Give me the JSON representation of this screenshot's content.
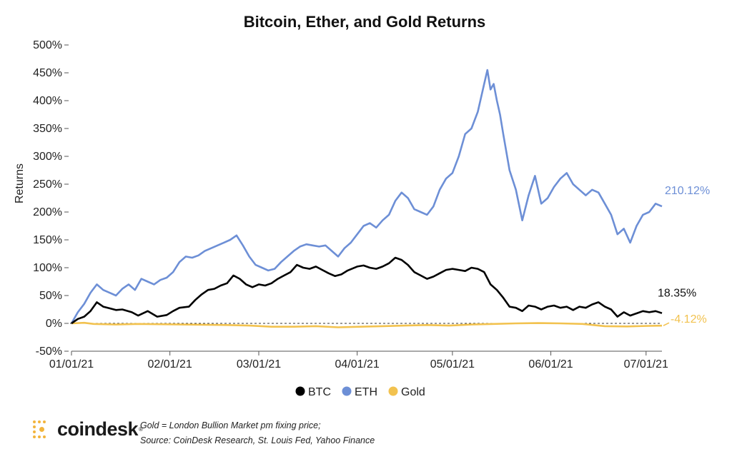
{
  "chart_data": {
    "type": "line",
    "title": "Bitcoin, Ether, and Gold Returns",
    "ylabel": "Returns",
    "xlabel": "",
    "ylim": [
      -50,
      500
    ],
    "yticks": [
      -50,
      0,
      50,
      100,
      150,
      200,
      250,
      300,
      350,
      400,
      450,
      500
    ],
    "ytick_labels": [
      "-50%",
      "0%",
      "50%",
      "100%",
      "150%",
      "200%",
      "250%",
      "300%",
      "350%",
      "400%",
      "450%",
      "500%"
    ],
    "xlim": [
      "2021-01-01",
      "2021-07-06"
    ],
    "xticks": [
      "2021-01-01",
      "2021-02-01",
      "2021-03-01",
      "2021-04-01",
      "2021-05-01",
      "2021-06-01",
      "2021-07-01"
    ],
    "xtick_labels": [
      "01/01/21",
      "02/01/21",
      "03/01/21",
      "04/01/21",
      "05/01/21",
      "06/01/21",
      "07/01/21"
    ],
    "zero_line": "dashed",
    "legend_position": "bottom",
    "series": [
      {
        "name": "BTC",
        "color": "#000000",
        "end_label": "18.35%",
        "points": [
          [
            "2021-01-01",
            0
          ],
          [
            "2021-01-03",
            8
          ],
          [
            "2021-01-05",
            12
          ],
          [
            "2021-01-07",
            22
          ],
          [
            "2021-01-09",
            38
          ],
          [
            "2021-01-11",
            30
          ],
          [
            "2021-01-13",
            27
          ],
          [
            "2021-01-15",
            24
          ],
          [
            "2021-01-17",
            25
          ],
          [
            "2021-01-20",
            20
          ],
          [
            "2021-01-22",
            14
          ],
          [
            "2021-01-25",
            22
          ],
          [
            "2021-01-28",
            12
          ],
          [
            "2021-01-31",
            15
          ],
          [
            "2021-02-02",
            22
          ],
          [
            "2021-02-04",
            28
          ],
          [
            "2021-02-07",
            30
          ],
          [
            "2021-02-09",
            42
          ],
          [
            "2021-02-11",
            52
          ],
          [
            "2021-02-13",
            60
          ],
          [
            "2021-02-15",
            62
          ],
          [
            "2021-02-17",
            68
          ],
          [
            "2021-02-19",
            72
          ],
          [
            "2021-02-21",
            86
          ],
          [
            "2021-02-23",
            80
          ],
          [
            "2021-02-25",
            70
          ],
          [
            "2021-02-27",
            65
          ],
          [
            "2021-03-01",
            70
          ],
          [
            "2021-03-03",
            68
          ],
          [
            "2021-03-05",
            72
          ],
          [
            "2021-03-07",
            80
          ],
          [
            "2021-03-09",
            86
          ],
          [
            "2021-03-11",
            92
          ],
          [
            "2021-03-13",
            105
          ],
          [
            "2021-03-15",
            100
          ],
          [
            "2021-03-17",
            98
          ],
          [
            "2021-03-19",
            102
          ],
          [
            "2021-03-21",
            96
          ],
          [
            "2021-03-23",
            90
          ],
          [
            "2021-03-25",
            85
          ],
          [
            "2021-03-27",
            88
          ],
          [
            "2021-03-29",
            95
          ],
          [
            "2021-04-01",
            102
          ],
          [
            "2021-04-03",
            104
          ],
          [
            "2021-04-05",
            100
          ],
          [
            "2021-04-07",
            98
          ],
          [
            "2021-04-09",
            102
          ],
          [
            "2021-04-11",
            108
          ],
          [
            "2021-04-13",
            118
          ],
          [
            "2021-04-15",
            114
          ],
          [
            "2021-04-17",
            105
          ],
          [
            "2021-04-19",
            92
          ],
          [
            "2021-04-21",
            86
          ],
          [
            "2021-04-23",
            80
          ],
          [
            "2021-04-25",
            84
          ],
          [
            "2021-04-27",
            90
          ],
          [
            "2021-04-29",
            96
          ],
          [
            "2021-05-01",
            98
          ],
          [
            "2021-05-03",
            96
          ],
          [
            "2021-05-05",
            94
          ],
          [
            "2021-05-07",
            100
          ],
          [
            "2021-05-09",
            98
          ],
          [
            "2021-05-11",
            92
          ],
          [
            "2021-05-13",
            70
          ],
          [
            "2021-05-15",
            60
          ],
          [
            "2021-05-17",
            46
          ],
          [
            "2021-05-19",
            30
          ],
          [
            "2021-05-21",
            28
          ],
          [
            "2021-05-23",
            22
          ],
          [
            "2021-05-25",
            32
          ],
          [
            "2021-05-27",
            30
          ],
          [
            "2021-05-29",
            25
          ],
          [
            "2021-05-31",
            30
          ],
          [
            "2021-06-02",
            32
          ],
          [
            "2021-06-04",
            28
          ],
          [
            "2021-06-06",
            30
          ],
          [
            "2021-06-08",
            24
          ],
          [
            "2021-06-10",
            30
          ],
          [
            "2021-06-12",
            28
          ],
          [
            "2021-06-14",
            34
          ],
          [
            "2021-06-16",
            38
          ],
          [
            "2021-06-18",
            30
          ],
          [
            "2021-06-20",
            25
          ],
          [
            "2021-06-22",
            12
          ],
          [
            "2021-06-24",
            20
          ],
          [
            "2021-06-26",
            14
          ],
          [
            "2021-06-28",
            18
          ],
          [
            "2021-06-30",
            22
          ],
          [
            "2021-07-02",
            20
          ],
          [
            "2021-07-04",
            22
          ],
          [
            "2021-07-06",
            18.35
          ]
        ]
      },
      {
        "name": "ETH",
        "color": "#6d8fd6",
        "end_label": "210.12%",
        "points": [
          [
            "2021-01-01",
            0
          ],
          [
            "2021-01-03",
            20
          ],
          [
            "2021-01-05",
            35
          ],
          [
            "2021-01-07",
            55
          ],
          [
            "2021-01-09",
            70
          ],
          [
            "2021-01-11",
            60
          ],
          [
            "2021-01-13",
            55
          ],
          [
            "2021-01-15",
            50
          ],
          [
            "2021-01-17",
            62
          ],
          [
            "2021-01-19",
            70
          ],
          [
            "2021-01-21",
            60
          ],
          [
            "2021-01-23",
            80
          ],
          [
            "2021-01-25",
            75
          ],
          [
            "2021-01-27",
            70
          ],
          [
            "2021-01-29",
            78
          ],
          [
            "2021-01-31",
            82
          ],
          [
            "2021-02-02",
            92
          ],
          [
            "2021-02-04",
            110
          ],
          [
            "2021-02-06",
            120
          ],
          [
            "2021-02-08",
            118
          ],
          [
            "2021-02-10",
            122
          ],
          [
            "2021-02-12",
            130
          ],
          [
            "2021-02-14",
            135
          ],
          [
            "2021-02-16",
            140
          ],
          [
            "2021-02-18",
            145
          ],
          [
            "2021-02-20",
            150
          ],
          [
            "2021-02-22",
            158
          ],
          [
            "2021-02-24",
            140
          ],
          [
            "2021-02-26",
            120
          ],
          [
            "2021-02-28",
            105
          ],
          [
            "2021-03-02",
            100
          ],
          [
            "2021-03-04",
            95
          ],
          [
            "2021-03-06",
            98
          ],
          [
            "2021-03-08",
            110
          ],
          [
            "2021-03-10",
            120
          ],
          [
            "2021-03-12",
            130
          ],
          [
            "2021-03-14",
            138
          ],
          [
            "2021-03-16",
            142
          ],
          [
            "2021-03-18",
            140
          ],
          [
            "2021-03-20",
            138
          ],
          [
            "2021-03-22",
            140
          ],
          [
            "2021-03-24",
            130
          ],
          [
            "2021-03-26",
            120
          ],
          [
            "2021-03-28",
            135
          ],
          [
            "2021-03-30",
            145
          ],
          [
            "2021-04-01",
            160
          ],
          [
            "2021-04-03",
            175
          ],
          [
            "2021-04-05",
            180
          ],
          [
            "2021-04-07",
            172
          ],
          [
            "2021-04-09",
            185
          ],
          [
            "2021-04-11",
            195
          ],
          [
            "2021-04-13",
            220
          ],
          [
            "2021-04-15",
            235
          ],
          [
            "2021-04-17",
            225
          ],
          [
            "2021-04-19",
            205
          ],
          [
            "2021-04-21",
            200
          ],
          [
            "2021-04-23",
            195
          ],
          [
            "2021-04-25",
            210
          ],
          [
            "2021-04-27",
            240
          ],
          [
            "2021-04-29",
            260
          ],
          [
            "2021-05-01",
            270
          ],
          [
            "2021-05-03",
            300
          ],
          [
            "2021-05-05",
            340
          ],
          [
            "2021-05-07",
            350
          ],
          [
            "2021-05-09",
            380
          ],
          [
            "2021-05-11",
            430
          ],
          [
            "2021-05-12",
            455
          ],
          [
            "2021-05-13",
            420
          ],
          [
            "2021-05-14",
            430
          ],
          [
            "2021-05-15",
            400
          ],
          [
            "2021-05-16",
            375
          ],
          [
            "2021-05-17",
            340
          ],
          [
            "2021-05-19",
            275
          ],
          [
            "2021-05-21",
            240
          ],
          [
            "2021-05-23",
            185
          ],
          [
            "2021-05-25",
            230
          ],
          [
            "2021-05-27",
            265
          ],
          [
            "2021-05-29",
            215
          ],
          [
            "2021-05-31",
            225
          ],
          [
            "2021-06-02",
            245
          ],
          [
            "2021-06-04",
            260
          ],
          [
            "2021-06-06",
            270
          ],
          [
            "2021-06-08",
            250
          ],
          [
            "2021-06-10",
            240
          ],
          [
            "2021-06-12",
            230
          ],
          [
            "2021-06-14",
            240
          ],
          [
            "2021-06-16",
            235
          ],
          [
            "2021-06-18",
            215
          ],
          [
            "2021-06-20",
            195
          ],
          [
            "2021-06-22",
            160
          ],
          [
            "2021-06-24",
            170
          ],
          [
            "2021-06-26",
            145
          ],
          [
            "2021-06-28",
            175
          ],
          [
            "2021-06-30",
            195
          ],
          [
            "2021-07-02",
            200
          ],
          [
            "2021-07-04",
            215
          ],
          [
            "2021-07-06",
            210.12
          ]
        ]
      },
      {
        "name": "Gold",
        "color": "#f2c24f",
        "end_label": "-4.12%",
        "points": [
          [
            "2021-01-01",
            0
          ],
          [
            "2021-01-05",
            1
          ],
          [
            "2021-01-08",
            -1
          ],
          [
            "2021-01-15",
            -2
          ],
          [
            "2021-01-22",
            -1
          ],
          [
            "2021-01-29",
            -1.5
          ],
          [
            "2021-02-05",
            -2
          ],
          [
            "2021-02-12",
            -2.5
          ],
          [
            "2021-02-19",
            -3
          ],
          [
            "2021-02-26",
            -4
          ],
          [
            "2021-03-05",
            -6
          ],
          [
            "2021-03-12",
            -6
          ],
          [
            "2021-03-19",
            -5
          ],
          [
            "2021-03-26",
            -7
          ],
          [
            "2021-04-02",
            -6
          ],
          [
            "2021-04-09",
            -5
          ],
          [
            "2021-04-16",
            -4
          ],
          [
            "2021-04-23",
            -3
          ],
          [
            "2021-04-30",
            -4
          ],
          [
            "2021-05-07",
            -2
          ],
          [
            "2021-05-14",
            -1
          ],
          [
            "2021-05-21",
            0
          ],
          [
            "2021-05-28",
            0.5
          ],
          [
            "2021-06-04",
            0
          ],
          [
            "2021-06-11",
            -1
          ],
          [
            "2021-06-18",
            -5
          ],
          [
            "2021-06-25",
            -5.5
          ],
          [
            "2021-07-02",
            -4.5
          ],
          [
            "2021-07-06",
            -4.12
          ]
        ]
      }
    ]
  },
  "footer": {
    "brand": "coindesk",
    "brand_mark": "®",
    "note_line1": "Gold = London Bullion Market pm fixing price;",
    "note_line2": "Source: CoinDesk Research, St. Louis Fed, Yahoo Finance",
    "brand_color": "#f2b43c"
  }
}
